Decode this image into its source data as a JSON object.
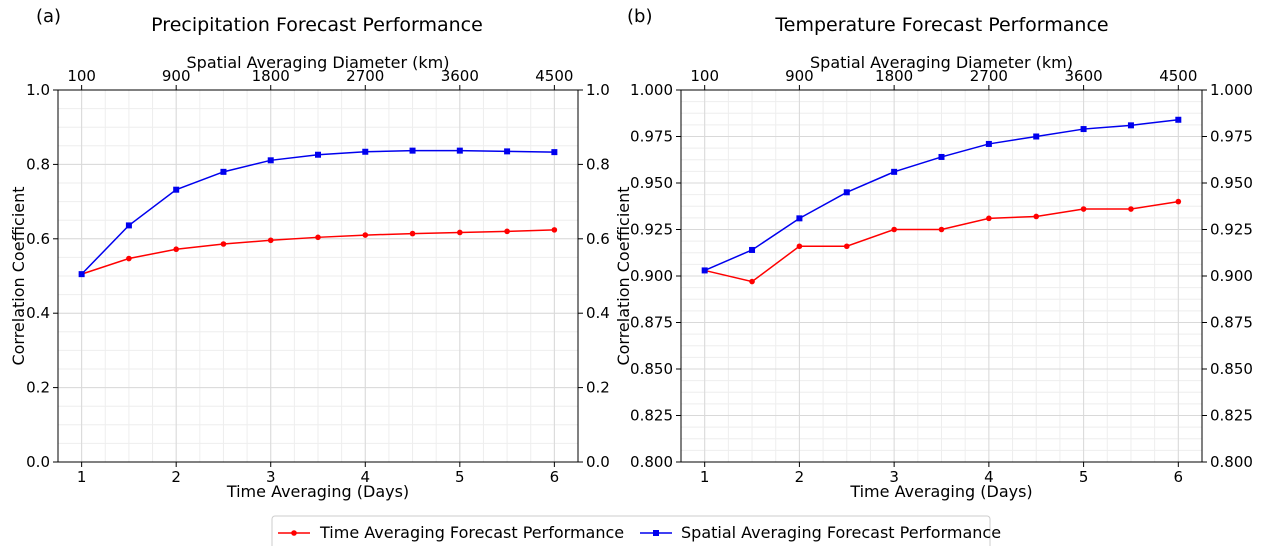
{
  "colors": {
    "time": "#ff0000",
    "spatial": "#0000ee",
    "grid_major": "#d9d9d9",
    "grid_minor": "#eeeeee"
  },
  "legend": {
    "placement": "bottom-center",
    "items": [
      {
        "label": "Time Averaging Forecast Performance",
        "color": "#ff0000",
        "marker": "circle"
      },
      {
        "label": "Spatial Averaging Forecast Performance",
        "color": "#0000ee",
        "marker": "square"
      }
    ]
  },
  "chart_data": [
    {
      "type": "line",
      "panel_label": "(a)",
      "title": "Precipitation Forecast Performance",
      "xlabel": "Time Averaging (Days)",
      "top_xlabel": "Spatial Averaging Diameter (km)",
      "ylabel": "Correlation Coefficient",
      "xlim": [
        0.75,
        6.25
      ],
      "ylim": [
        0.0,
        1.0
      ],
      "x_ticks": [
        1,
        2,
        3,
        4,
        5,
        6
      ],
      "x_tick_labels": [
        "1",
        "2",
        "3",
        "4",
        "5",
        "6"
      ],
      "top_ticks": [
        1,
        2,
        3,
        4,
        5,
        6
      ],
      "top_tick_labels": [
        "100",
        "900",
        "1800",
        "2700",
        "3600",
        "4500"
      ],
      "y_ticks": [
        0.0,
        0.2,
        0.4,
        0.6,
        0.8,
        1.0
      ],
      "y_tick_labels": [
        "0.0",
        "0.2",
        "0.4",
        "0.6",
        "0.8",
        "1.0"
      ],
      "grid": true,
      "x": [
        1,
        1.5,
        2,
        2.5,
        3,
        3.5,
        4,
        4.5,
        5,
        5.5,
        6
      ],
      "series": [
        {
          "key": "time",
          "values": [
            0.505,
            0.547,
            0.572,
            0.586,
            0.596,
            0.604,
            0.61,
            0.614,
            0.617,
            0.62,
            0.624
          ]
        },
        {
          "key": "spatial",
          "values": [
            0.505,
            0.636,
            0.732,
            0.78,
            0.811,
            0.826,
            0.834,
            0.837,
            0.837,
            0.835,
            0.833
          ]
        }
      ]
    },
    {
      "type": "line",
      "panel_label": "(b)",
      "title": "Temperature Forecast Performance",
      "xlabel": "Time Averaging (Days)",
      "top_xlabel": "Spatial Averaging Diameter (km)",
      "ylabel": "Correlation Coefficient",
      "xlim": [
        0.75,
        6.25
      ],
      "ylim": [
        0.8,
        1.0
      ],
      "x_ticks": [
        1,
        2,
        3,
        4,
        5,
        6
      ],
      "x_tick_labels": [
        "1",
        "2",
        "3",
        "4",
        "5",
        "6"
      ],
      "top_ticks": [
        1,
        2,
        3,
        4,
        5,
        6
      ],
      "top_tick_labels": [
        "100",
        "900",
        "1800",
        "2700",
        "3600",
        "4500"
      ],
      "y_ticks": [
        0.8,
        0.825,
        0.85,
        0.875,
        0.9,
        0.925,
        0.95,
        0.975,
        1.0
      ],
      "y_tick_labels": [
        "0.800",
        "0.825",
        "0.850",
        "0.875",
        "0.900",
        "0.925",
        "0.950",
        "0.975",
        "1.000"
      ],
      "grid": true,
      "x": [
        1,
        1.5,
        2,
        2.5,
        3,
        3.5,
        4,
        4.5,
        5,
        5.5,
        6
      ],
      "series": [
        {
          "key": "time",
          "values": [
            0.903,
            0.897,
            0.916,
            0.916,
            0.925,
            0.925,
            0.931,
            0.932,
            0.936,
            0.936,
            0.94
          ]
        },
        {
          "key": "spatial",
          "values": [
            0.903,
            0.914,
            0.931,
            0.945,
            0.956,
            0.964,
            0.971,
            0.975,
            0.979,
            0.981,
            0.984
          ]
        }
      ]
    }
  ]
}
